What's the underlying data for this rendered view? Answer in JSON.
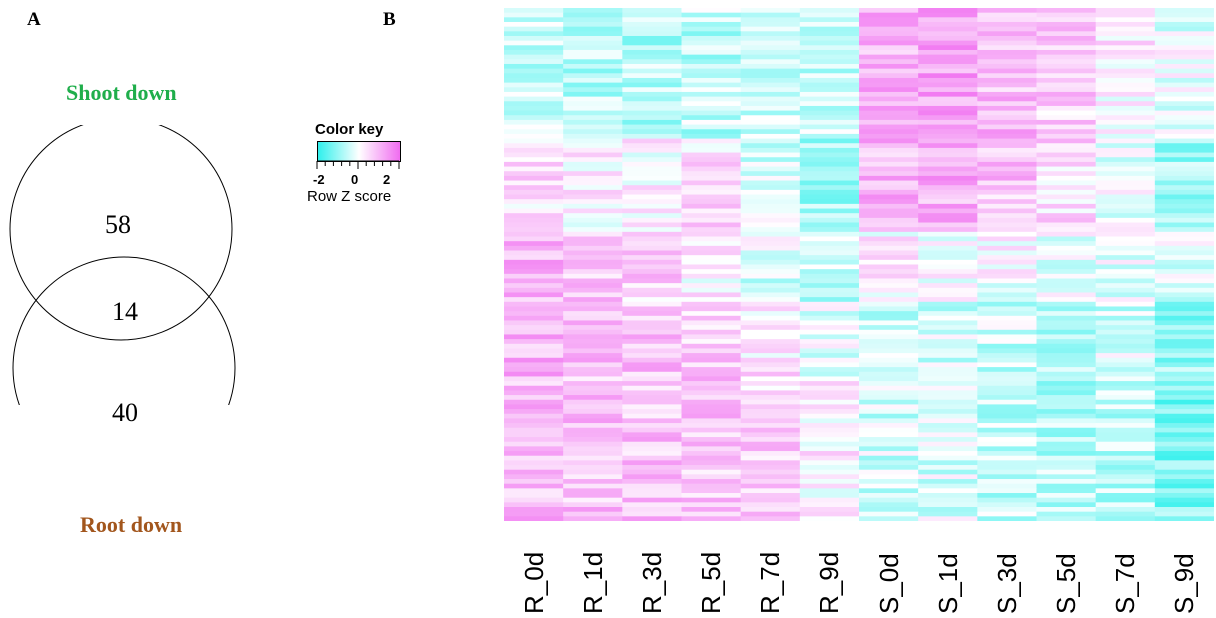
{
  "panels": {
    "a": "A",
    "b": "B"
  },
  "venn": {
    "top_label": "Shoot down",
    "bottom_label": "Root down",
    "top_only": "58",
    "overlap": "14",
    "bottom_only": "40",
    "colors": {
      "top_label": "#1fae4b",
      "bottom_label": "#a2561d",
      "circle_stroke": "#000000"
    }
  },
  "color_key": {
    "title": "Color key",
    "ticks": [
      "-2",
      "0",
      "2"
    ],
    "caption": "Row Z score",
    "colors": {
      "low": "#2ff0ec",
      "mid": "#ffffff",
      "high": "#f06cf0"
    }
  },
  "chart_data": {
    "type": "heatmap",
    "columns": [
      "R_0d",
      "R_1d",
      "R_3d",
      "R_5d",
      "R_7d",
      "R_9d",
      "S_0d",
      "S_1d",
      "S_3d",
      "S_5d",
      "S_7d",
      "S_9d"
    ],
    "value_range": [
      -2,
      2
    ],
    "column_block_means": [
      [
        -0.6,
        -0.6,
        -0.7,
        -0.6,
        -0.4,
        -0.6,
        1.1,
        1.2,
        0.9,
        0.6,
        0.2,
        -0.2
      ],
      [
        0.4,
        0.2,
        0.1,
        0.4,
        -0.3,
        -0.8,
        1.0,
        1.1,
        0.8,
        0.5,
        -0.2,
        -0.9
      ],
      [
        1.0,
        0.8,
        0.6,
        0.2,
        -0.3,
        -0.6,
        0.2,
        0.1,
        0.0,
        -0.2,
        -0.2,
        -0.3
      ],
      [
        1.0,
        0.8,
        0.8,
        0.7,
        0.4,
        -0.2,
        -0.5,
        -0.4,
        -0.5,
        -0.6,
        -0.4,
        -1.0
      ],
      [
        0.9,
        0.8,
        0.8,
        0.8,
        0.6,
        0.2,
        -0.4,
        -0.3,
        -0.6,
        -0.7,
        -0.6,
        -1.2
      ]
    ],
    "row_count": 110
  }
}
